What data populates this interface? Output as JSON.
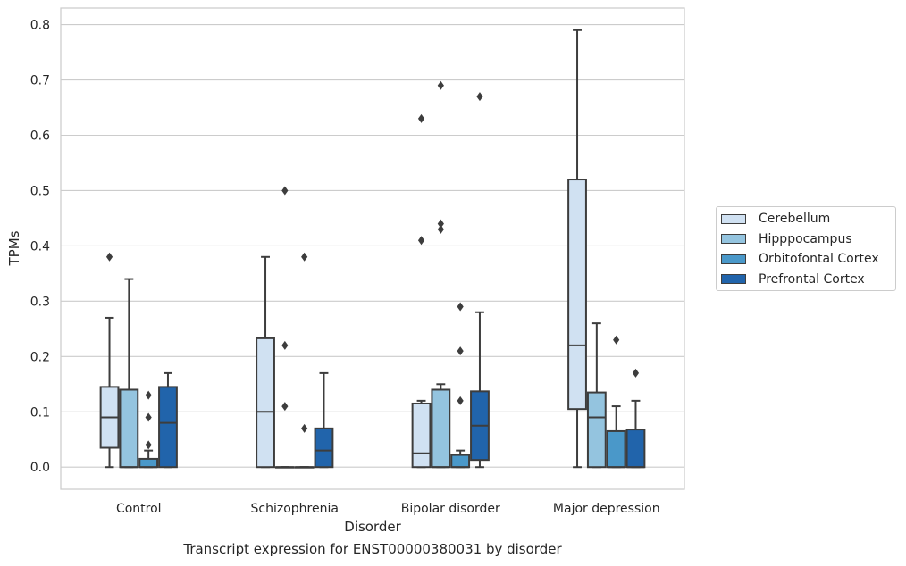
{
  "caption": "Transcript expression for ENST00000380031 by disorder",
  "chart_data": {
    "type": "box",
    "xlabel": "Disorder",
    "ylabel": "TPMs",
    "ylim": [
      -0.04,
      0.83
    ],
    "yticks": [
      0.0,
      0.1,
      0.2,
      0.3,
      0.4,
      0.5,
      0.6,
      0.7,
      0.8
    ],
    "ytick_labels": [
      "0.0",
      "0.1",
      "0.2",
      "0.3",
      "0.4",
      "0.5",
      "0.6",
      "0.7",
      "0.8"
    ],
    "grid": true,
    "legend_position": "right",
    "categories": [
      "Control",
      "Schizophrenia",
      "Bipolar disorder",
      "Major depression"
    ],
    "series": [
      {
        "name": "Cerebellum",
        "color": "#d0e1f2",
        "boxes": [
          {
            "whislo": 0.0,
            "q1": 0.035,
            "med": 0.09,
            "q3": 0.145,
            "whishi": 0.27,
            "fliers": [
              0.38
            ]
          },
          {
            "whislo": 0.0,
            "q1": 0.0,
            "med": 0.1,
            "q3": 0.233,
            "whishi": 0.38,
            "fliers": []
          },
          {
            "whislo": 0.0,
            "q1": 0.0,
            "med": 0.025,
            "q3": 0.115,
            "whishi": 0.12,
            "fliers": [
              0.41,
              0.63
            ]
          },
          {
            "whislo": 0.0,
            "q1": 0.105,
            "med": 0.22,
            "q3": 0.52,
            "whishi": 0.79,
            "fliers": []
          }
        ]
      },
      {
        "name": "Hipppocampus",
        "color": "#94c4df",
        "boxes": [
          {
            "whislo": 0.0,
            "q1": 0.0,
            "med": 0.0,
            "q3": 0.14,
            "whishi": 0.34,
            "fliers": []
          },
          {
            "whislo": 0.0,
            "q1": 0.0,
            "med": 0.0,
            "q3": 0.0,
            "whishi": 0.0,
            "fliers": [
              0.11,
              0.22,
              0.5
            ]
          },
          {
            "whislo": 0.0,
            "q1": 0.0,
            "med": 0.0,
            "q3": 0.14,
            "whishi": 0.15,
            "fliers": [
              0.43,
              0.44,
              0.69
            ]
          },
          {
            "whislo": 0.0,
            "q1": 0.0,
            "med": 0.09,
            "q3": 0.135,
            "whishi": 0.26,
            "fliers": []
          }
        ]
      },
      {
        "name": "Orbitofontal Cortex",
        "color": "#4a98c9",
        "boxes": [
          {
            "whislo": 0.0,
            "q1": 0.0,
            "med": 0.0,
            "q3": 0.015,
            "whishi": 0.03,
            "fliers": [
              0.04,
              0.09,
              0.13
            ]
          },
          {
            "whislo": 0.0,
            "q1": 0.0,
            "med": 0.0,
            "q3": 0.0,
            "whishi": 0.0,
            "fliers": [
              0.07,
              0.38
            ]
          },
          {
            "whislo": 0.0,
            "q1": 0.0,
            "med": 0.0,
            "q3": 0.022,
            "whishi": 0.03,
            "fliers": [
              0.12,
              0.21,
              0.29
            ]
          },
          {
            "whislo": 0.0,
            "q1": 0.0,
            "med": 0.0,
            "q3": 0.065,
            "whishi": 0.11,
            "fliers": [
              0.23
            ]
          }
        ]
      },
      {
        "name": "Prefrontal Cortex",
        "color": "#2164ab",
        "boxes": [
          {
            "whislo": 0.0,
            "q1": 0.0,
            "med": 0.08,
            "q3": 0.145,
            "whishi": 0.17,
            "fliers": []
          },
          {
            "whislo": 0.0,
            "q1": 0.0,
            "med": 0.03,
            "q3": 0.07,
            "whishi": 0.17,
            "fliers": []
          },
          {
            "whislo": 0.0,
            "q1": 0.013,
            "med": 0.075,
            "q3": 0.137,
            "whishi": 0.28,
            "fliers": [
              0.67
            ]
          },
          {
            "whislo": 0.0,
            "q1": 0.0,
            "med": 0.0,
            "q3": 0.068,
            "whishi": 0.12,
            "fliers": [
              0.17
            ]
          }
        ]
      }
    ]
  }
}
